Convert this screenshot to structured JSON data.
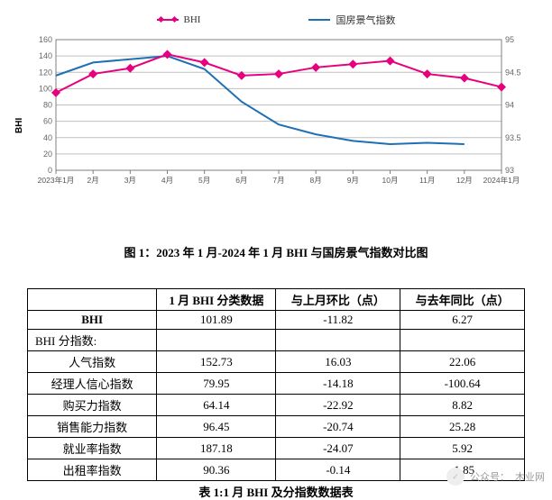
{
  "chart": {
    "type": "line-dual-axis",
    "legend": [
      {
        "label": "BHI",
        "color": "#e6007e",
        "marker": "diamond"
      },
      {
        "label": "国房景气指数",
        "color": "#1f6fb5",
        "marker": "none"
      }
    ],
    "y_left": {
      "label": "BHI",
      "min": 0,
      "max": 160,
      "step": 20,
      "ticks": [
        0,
        20,
        40,
        60,
        80,
        100,
        120,
        140,
        160
      ],
      "axis_color": "#7f7f7f",
      "label_fontsize": 10
    },
    "y_right": {
      "min": 93,
      "max": 95,
      "step": 0.5,
      "ticks": [
        93,
        93.5,
        94,
        94.5,
        95
      ],
      "axis_color": "#7f7f7f"
    },
    "x": {
      "labels": [
        "2023年1月",
        "2月",
        "3月",
        "4月",
        "5月",
        "6月",
        "7月",
        "8月",
        "9月",
        "10月",
        "11月",
        "12月",
        "2024年1月"
      ],
      "axis_color": "#7f7f7f",
      "tick_fontsize": 9
    },
    "series": {
      "bhi": {
        "color": "#e6007e",
        "line_width": 2,
        "marker": "diamond",
        "marker_size": 5,
        "data": [
          95,
          118,
          125,
          142,
          132,
          116,
          118,
          126,
          130,
          134,
          118,
          113,
          102
        ]
      },
      "guofang": {
        "color": "#1f6fb5",
        "line_width": 2,
        "marker": "none",
        "data": [
          94.45,
          94.65,
          94.7,
          94.75,
          94.55,
          94.05,
          93.7,
          93.55,
          93.45,
          93.4,
          93.42,
          93.4,
          null
        ]
      }
    },
    "grid_color": "#bfbfbf",
    "plot_border_color": "#7f7f7f",
    "background_color": "#ffffff",
    "caption": "图 1：2023 年 1 月-2024 年 1 月 BHI 与国房景气指数对比图"
  },
  "table": {
    "headers": [
      "",
      "1 月 BHI 分类数据",
      "与上月环比（点）",
      "与去年同比（点）"
    ],
    "rows": [
      {
        "label": "BHI",
        "cells": [
          "101.89",
          "-11.82",
          "6.27"
        ],
        "bold_label": true
      },
      {
        "label": "BHI 分指数:",
        "cells": [
          "",
          "",
          ""
        ],
        "section": true
      },
      {
        "label": "人气指数",
        "cells": [
          "152.73",
          "16.03",
          "22.06"
        ]
      },
      {
        "label": "经理人信心指数",
        "cells": [
          "79.95",
          "-14.18",
          "-100.64"
        ]
      },
      {
        "label": "购买力指数",
        "cells": [
          "64.14",
          "-22.92",
          "8.82"
        ]
      },
      {
        "label": "销售能力指数",
        "cells": [
          "96.45",
          "-20.74",
          "25.28"
        ]
      },
      {
        "label": "就业率指数",
        "cells": [
          "187.18",
          "-24.07",
          "5.92"
        ]
      },
      {
        "label": "出租率指数",
        "cells": [
          "90.36",
          "-0.14",
          "-1.85"
        ]
      }
    ],
    "caption": "表 1:1 月 BHI 及分指数数据表",
    "col_widths_pct": [
      26,
      24,
      25,
      25
    ]
  },
  "watermark": {
    "prefix": "公众号：",
    "name": "木业网"
  }
}
